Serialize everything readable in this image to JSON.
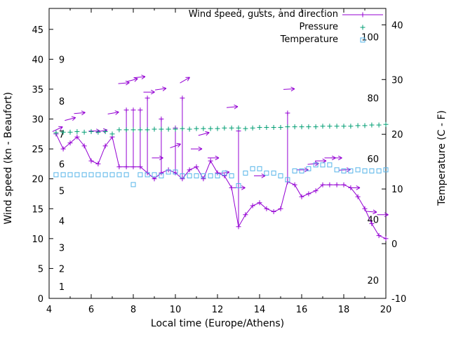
{
  "colors": {
    "wind": "#9400D3",
    "pressure": "#009E73",
    "temperature": "#56B4E9",
    "axis": "#000000"
  },
  "legend": [
    {
      "label": "Wind speed, gusts, and direction",
      "series": "wind"
    },
    {
      "label": "Pressure",
      "series": "pressure"
    },
    {
      "label": "Temperature",
      "series": "temperature"
    }
  ],
  "axes": {
    "x": {
      "label": "Local time (Europe/Athens)",
      "min": 4,
      "max": 20,
      "ticks": [
        4,
        6,
        8,
        10,
        12,
        14,
        16,
        18,
        20
      ],
      "minor_step": 1
    },
    "y_left": {
      "label": "Wind speed (kn - Beaufort)",
      "ticks": [
        0,
        5,
        10,
        15,
        20,
        25,
        30,
        35,
        40,
        45
      ],
      "beaufort_labels": [
        [
          1,
          2
        ],
        [
          2,
          5
        ],
        [
          3,
          8.5
        ],
        [
          4,
          13
        ],
        [
          5,
          18
        ],
        [
          6,
          22.5
        ],
        [
          7,
          27.5
        ],
        [
          8,
          33
        ],
        [
          9,
          40
        ]
      ]
    },
    "y_right": {
      "label": "Temperature (C - F)",
      "ticks": [
        -10,
        0,
        10,
        20,
        30,
        40
      ],
      "fahrenheit_labels": [
        20,
        40,
        60,
        80,
        100
      ]
    }
  },
  "chart_data": {
    "type": "line",
    "title": "",
    "xlabel": "Local time (Europe/Athens)",
    "ylabel": "Wind speed (kn - Beaufort)",
    "y2label": "Temperature (C - F)",
    "xlim": [
      4,
      20
    ],
    "ylim": [
      0,
      48.5
    ],
    "y2lim": [
      -10,
      43
    ],
    "legend_position": "top-right-inside",
    "grid": false,
    "series": [
      {
        "name": "Wind speed, gusts, and direction",
        "axis": "left",
        "type": "line+markers+gust-impulses+direction-arrows",
        "units": "kn",
        "points": [
          [
            4.33,
            27.5,
            null
          ],
          [
            4.67,
            25,
            null
          ],
          [
            5.0,
            26,
            null
          ],
          [
            5.33,
            27,
            null
          ],
          [
            5.67,
            25.5,
            null
          ],
          [
            6.0,
            23,
            null
          ],
          [
            6.33,
            22.5,
            null
          ],
          [
            6.67,
            25.5,
            null
          ],
          [
            7.0,
            27,
            null
          ],
          [
            7.33,
            22,
            null
          ],
          [
            7.67,
            22,
            31.5
          ],
          [
            8.0,
            22,
            31.5
          ],
          [
            8.33,
            22,
            31.5
          ],
          [
            8.67,
            21,
            33.5
          ],
          [
            9.0,
            20,
            null
          ],
          [
            9.33,
            21,
            30
          ],
          [
            9.67,
            21.5,
            null
          ],
          [
            10.0,
            21,
            28.5
          ],
          [
            10.33,
            20,
            33.5
          ],
          [
            10.67,
            21.5,
            null
          ],
          [
            11.0,
            22,
            null
          ],
          [
            11.33,
            20,
            null
          ],
          [
            11.67,
            23,
            null
          ],
          [
            12.0,
            21,
            null
          ],
          [
            12.33,
            20.5,
            null
          ],
          [
            12.67,
            18.5,
            null
          ],
          [
            13.0,
            12,
            28
          ],
          [
            13.33,
            14,
            null
          ],
          [
            13.67,
            15.5,
            null
          ],
          [
            14.0,
            16,
            null
          ],
          [
            14.33,
            15,
            null
          ],
          [
            14.67,
            14.5,
            null
          ],
          [
            15.0,
            15,
            null
          ],
          [
            15.33,
            19.5,
            31
          ],
          [
            15.67,
            19,
            null
          ],
          [
            16.0,
            17,
            null
          ],
          [
            16.33,
            17.5,
            null
          ],
          [
            16.67,
            18,
            null
          ],
          [
            17.0,
            19,
            null
          ],
          [
            17.33,
            19,
            null
          ],
          [
            17.67,
            19,
            null
          ],
          [
            18.0,
            19,
            null
          ],
          [
            18.33,
            18.5,
            null
          ],
          [
            18.67,
            17,
            null
          ],
          [
            19.0,
            15,
            null
          ],
          [
            19.33,
            12.5,
            null
          ],
          [
            19.67,
            10.5,
            null
          ],
          [
            20.0,
            10,
            null
          ]
        ],
        "arrows": [
          [
            4.4,
            28.3,
            25
          ],
          [
            5.0,
            30,
            15
          ],
          [
            5.45,
            31,
            5
          ],
          [
            6.15,
            28,
            0
          ],
          [
            6.5,
            28,
            10
          ],
          [
            7.05,
            31,
            10
          ],
          [
            7.55,
            36,
            5
          ],
          [
            7.95,
            36.5,
            15
          ],
          [
            8.3,
            37,
            5
          ],
          [
            8.75,
            34.5,
            0
          ],
          [
            9.3,
            35,
            8
          ],
          [
            9.15,
            23.5,
            0
          ],
          [
            10.0,
            25.5,
            20
          ],
          [
            10.45,
            36.5,
            30
          ],
          [
            11.0,
            25,
            0
          ],
          [
            11.35,
            27.5,
            15
          ],
          [
            11.8,
            23.5,
            0
          ],
          [
            12.3,
            21,
            8
          ],
          [
            12.7,
            32,
            5
          ],
          [
            13.05,
            18.5,
            0
          ],
          [
            14.0,
            20.5,
            0
          ],
          [
            15.4,
            35,
            3
          ],
          [
            16.05,
            21.5,
            0
          ],
          [
            16.55,
            22.5,
            5
          ],
          [
            16.9,
            23,
            0
          ],
          [
            17.35,
            23.5,
            0
          ],
          [
            17.65,
            23.5,
            0
          ],
          [
            18.05,
            21.5,
            3
          ],
          [
            18.5,
            18.5,
            0
          ],
          [
            19.3,
            14.5,
            -5
          ],
          [
            19.85,
            14,
            0
          ]
        ]
      },
      {
        "name": "Pressure",
        "axis": "left",
        "type": "markers",
        "units": "plot-units (unlabeled scale)",
        "points": [
          [
            4.33,
            27.7
          ],
          [
            4.67,
            27.8
          ],
          [
            5.0,
            27.8
          ],
          [
            5.33,
            27.9
          ],
          [
            5.67,
            27.8
          ],
          [
            6.0,
            27.9
          ],
          [
            6.33,
            27.8
          ],
          [
            6.67,
            27.9
          ],
          [
            7.0,
            27.5
          ],
          [
            7.33,
            28.2
          ],
          [
            7.67,
            28.2
          ],
          [
            8.0,
            28.2
          ],
          [
            8.33,
            28.2
          ],
          [
            8.67,
            28.2
          ],
          [
            9.0,
            28.3
          ],
          [
            9.33,
            28.3
          ],
          [
            9.67,
            28.3
          ],
          [
            10.0,
            28.3
          ],
          [
            10.33,
            28.4
          ],
          [
            10.67,
            28.3
          ],
          [
            11.0,
            28.4
          ],
          [
            11.33,
            28.4
          ],
          [
            11.67,
            28.4
          ],
          [
            12.0,
            28.4
          ],
          [
            12.33,
            28.5
          ],
          [
            12.67,
            28.5
          ],
          [
            13.0,
            28.5
          ],
          [
            13.33,
            28.4
          ],
          [
            13.67,
            28.5
          ],
          [
            14.0,
            28.6
          ],
          [
            14.33,
            28.6
          ],
          [
            14.67,
            28.6
          ],
          [
            15.0,
            28.6
          ],
          [
            15.33,
            28.7
          ],
          [
            15.67,
            28.7
          ],
          [
            16.0,
            28.7
          ],
          [
            16.33,
            28.7
          ],
          [
            16.67,
            28.7
          ],
          [
            17.0,
            28.8
          ],
          [
            17.33,
            28.8
          ],
          [
            17.67,
            28.8
          ],
          [
            18.0,
            28.8
          ],
          [
            18.33,
            28.8
          ],
          [
            18.67,
            28.9
          ],
          [
            19.0,
            28.9
          ],
          [
            19.33,
            29.0
          ],
          [
            19.67,
            29.0
          ],
          [
            20.0,
            29.1
          ]
        ]
      },
      {
        "name": "Temperature",
        "axis": "right",
        "type": "markers",
        "units": "C",
        "points": [
          [
            4.33,
            12.6
          ],
          [
            4.67,
            12.6
          ],
          [
            5.0,
            12.6
          ],
          [
            5.33,
            12.6
          ],
          [
            5.67,
            12.6
          ],
          [
            6.0,
            12.6
          ],
          [
            6.33,
            12.6
          ],
          [
            6.67,
            12.6
          ],
          [
            7.0,
            12.6
          ],
          [
            7.33,
            12.6
          ],
          [
            7.67,
            12.6
          ],
          [
            8.0,
            10.8
          ],
          [
            8.33,
            12.6
          ],
          [
            8.67,
            12.6
          ],
          [
            9.0,
            12.6
          ],
          [
            9.33,
            12.4
          ],
          [
            9.67,
            13.1
          ],
          [
            10.0,
            13.1
          ],
          [
            10.33,
            12.4
          ],
          [
            10.67,
            12.4
          ],
          [
            11.0,
            12.4
          ],
          [
            11.33,
            12.4
          ],
          [
            11.67,
            12.4
          ],
          [
            12.0,
            12.4
          ],
          [
            12.33,
            12.9
          ],
          [
            12.67,
            12.4
          ],
          [
            13.0,
            10.6
          ],
          [
            13.33,
            12.9
          ],
          [
            13.67,
            13.7
          ],
          [
            14.0,
            13.7
          ],
          [
            14.33,
            12.9
          ],
          [
            14.67,
            12.9
          ],
          [
            15.0,
            12.4
          ],
          [
            15.33,
            11.7
          ],
          [
            15.67,
            13.3
          ],
          [
            16.0,
            13.3
          ],
          [
            16.33,
            13.7
          ],
          [
            16.67,
            14.4
          ],
          [
            17.0,
            14.4
          ],
          [
            17.33,
            14.4
          ],
          [
            17.67,
            13.5
          ],
          [
            18.0,
            13.3
          ],
          [
            18.33,
            13.3
          ],
          [
            18.67,
            13.5
          ],
          [
            19.0,
            13.3
          ],
          [
            19.33,
            13.3
          ],
          [
            19.67,
            13.3
          ],
          [
            20.0,
            13.5
          ]
        ]
      }
    ]
  }
}
